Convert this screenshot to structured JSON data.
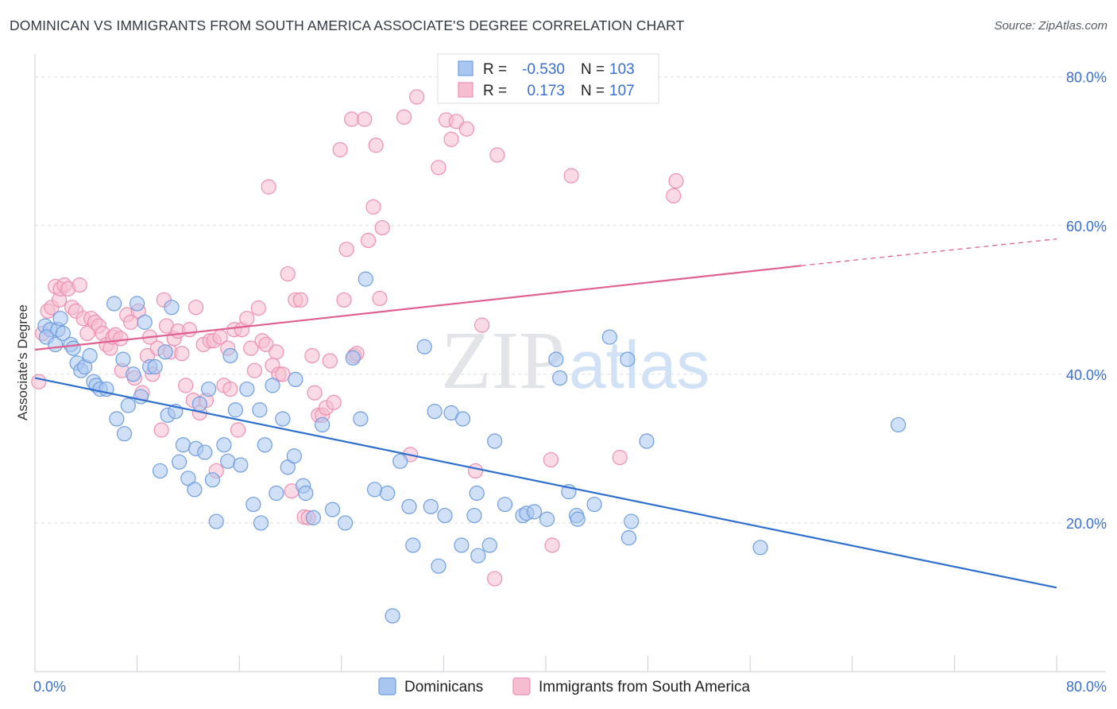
{
  "title": "DOMINICAN VS IMMIGRANTS FROM SOUTH AMERICA ASSOCIATE'S DEGREE CORRELATION CHART",
  "source": "Source: ZipAtlas.com",
  "watermark": {
    "zip": "ZIP",
    "atlas": "atlas"
  },
  "colors": {
    "blue_fill": "#a9c6f0",
    "blue_stroke": "#6f9ee0",
    "blue_line": "#2f6fd0",
    "pink_fill": "#f6bdd0",
    "pink_stroke": "#ee8fb0",
    "pink_line": "#e06090",
    "grid": "#d8dce2",
    "axis_text": "#3a6fd0"
  },
  "legend": {
    "rows": [
      {
        "r_label": "R =",
        "r_value": "-0.530",
        "n_label": "N =",
        "n_value": "103"
      },
      {
        "r_label": "R =",
        "r_value": "0.173",
        "n_label": "N =",
        "n_value": "107"
      }
    ]
  },
  "chart_data": {
    "type": "scatter",
    "title": "DOMINICAN VS IMMIGRANTS FROM SOUTH AMERICA ASSOCIATE'S DEGREE CORRELATION CHART",
    "xlabel": "",
    "ylabel": "Associate's Degree",
    "xlim": [
      0,
      80
    ],
    "ylim": [
      0,
      82
    ],
    "x_tick_labels": [
      "0.0%",
      "80.0%"
    ],
    "y_ticks": [
      20,
      40,
      60,
      80
    ],
    "y_tick_labels": [
      "20.0%",
      "40.0%",
      "60.0%",
      "80.0%"
    ],
    "grid": true,
    "legend_position": "top-center",
    "series": [
      {
        "name": "Dominicans",
        "color": "#a9c6f0",
        "trend": {
          "x": [
            0,
            80
          ],
          "y": [
            39.5,
            11.3
          ],
          "style": "solid"
        },
        "points": [
          [
            0.8,
            46.5
          ],
          [
            1.2,
            46.0
          ],
          [
            0.9,
            45.0
          ],
          [
            1.6,
            44.0
          ],
          [
            1.8,
            46.0
          ],
          [
            2.0,
            47.5
          ],
          [
            2.2,
            45.5
          ],
          [
            2.8,
            44.0
          ],
          [
            3.0,
            43.5
          ],
          [
            3.3,
            41.5
          ],
          [
            3.6,
            40.5
          ],
          [
            3.9,
            41.0
          ],
          [
            4.3,
            42.5
          ],
          [
            4.6,
            39.0
          ],
          [
            4.8,
            38.5
          ],
          [
            5.1,
            38.0
          ],
          [
            5.6,
            38.0
          ],
          [
            6.2,
            49.5
          ],
          [
            6.4,
            34.0
          ],
          [
            6.9,
            42.0
          ],
          [
            7.0,
            32.0
          ],
          [
            7.3,
            35.8
          ],
          [
            7.7,
            40.0
          ],
          [
            8.0,
            49.5
          ],
          [
            8.3,
            37.0
          ],
          [
            8.6,
            47.0
          ],
          [
            9.0,
            41.0
          ],
          [
            9.4,
            41.0
          ],
          [
            9.8,
            27.0
          ],
          [
            10.2,
            43.0
          ],
          [
            10.4,
            34.5
          ],
          [
            10.7,
            49.0
          ],
          [
            11.0,
            35.0
          ],
          [
            11.3,
            28.2
          ],
          [
            11.6,
            30.5
          ],
          [
            12.0,
            26.0
          ],
          [
            12.5,
            24.5
          ],
          [
            12.6,
            30.0
          ],
          [
            12.9,
            36.0
          ],
          [
            13.3,
            29.5
          ],
          [
            13.6,
            38.0
          ],
          [
            13.9,
            25.8
          ],
          [
            14.2,
            20.2
          ],
          [
            14.8,
            30.5
          ],
          [
            15.1,
            28.3
          ],
          [
            15.3,
            42.5
          ],
          [
            15.7,
            35.2
          ],
          [
            16.1,
            27.8
          ],
          [
            16.6,
            38.0
          ],
          [
            17.1,
            22.5
          ],
          [
            17.6,
            35.2
          ],
          [
            17.7,
            20.0
          ],
          [
            18.0,
            30.5
          ],
          [
            18.6,
            38.5
          ],
          [
            18.9,
            24.0
          ],
          [
            19.4,
            34.0
          ],
          [
            19.8,
            27.5
          ],
          [
            20.3,
            29.0
          ],
          [
            20.4,
            39.3
          ],
          [
            21.0,
            25.0
          ],
          [
            21.2,
            24.0
          ],
          [
            21.8,
            20.7
          ],
          [
            22.5,
            33.2
          ],
          [
            23.3,
            21.8
          ],
          [
            24.3,
            20.0
          ],
          [
            24.9,
            42.2
          ],
          [
            25.5,
            34.0
          ],
          [
            25.9,
            52.8
          ],
          [
            26.6,
            24.5
          ],
          [
            27.6,
            24.0
          ],
          [
            28.0,
            7.5
          ],
          [
            28.6,
            28.3
          ],
          [
            29.3,
            22.2
          ],
          [
            29.6,
            17.0
          ],
          [
            30.5,
            43.7
          ],
          [
            31.0,
            22.2
          ],
          [
            31.3,
            35.0
          ],
          [
            31.6,
            14.2
          ],
          [
            32.1,
            21.0
          ],
          [
            32.6,
            34.8
          ],
          [
            33.4,
            17.0
          ],
          [
            33.5,
            34.0
          ],
          [
            34.4,
            21.0
          ],
          [
            34.6,
            24.0
          ],
          [
            34.7,
            15.6
          ],
          [
            35.6,
            17.0
          ],
          [
            36.0,
            31.0
          ],
          [
            36.8,
            22.5
          ],
          [
            38.2,
            21.0
          ],
          [
            38.5,
            21.3
          ],
          [
            39.1,
            21.5
          ],
          [
            40.1,
            20.5
          ],
          [
            40.8,
            42.0
          ],
          [
            41.1,
            39.5
          ],
          [
            41.8,
            24.2
          ],
          [
            42.4,
            21.0
          ],
          [
            42.5,
            20.5
          ],
          [
            43.8,
            22.5
          ],
          [
            45.0,
            45.0
          ],
          [
            46.4,
            42.0
          ],
          [
            46.5,
            18.0
          ],
          [
            46.7,
            20.2
          ],
          [
            47.9,
            31.0
          ],
          [
            56.8,
            16.7
          ],
          [
            67.6,
            33.2
          ]
        ]
      },
      {
        "name": "Immigrants from South America",
        "color": "#f6bdd0",
        "trend": {
          "x": [
            0,
            60,
            80
          ],
          "y": [
            43.3,
            54.6,
            58.2
          ],
          "style": "solid-then-dashed",
          "dash_from_x": 60
        },
        "points": [
          [
            0.3,
            39.0
          ],
          [
            0.6,
            45.5
          ],
          [
            1.0,
            48.5
          ],
          [
            1.3,
            49.0
          ],
          [
            1.6,
            51.8
          ],
          [
            1.9,
            50.0
          ],
          [
            2.0,
            51.5
          ],
          [
            2.3,
            52.0
          ],
          [
            2.6,
            51.5
          ],
          [
            2.9,
            49.0
          ],
          [
            3.2,
            48.5
          ],
          [
            3.5,
            52.0
          ],
          [
            3.8,
            47.5
          ],
          [
            4.1,
            45.5
          ],
          [
            4.4,
            47.5
          ],
          [
            4.7,
            47.0
          ],
          [
            5.0,
            46.5
          ],
          [
            5.3,
            45.5
          ],
          [
            5.6,
            44.0
          ],
          [
            5.9,
            43.5
          ],
          [
            6.1,
            45.0
          ],
          [
            6.3,
            45.3
          ],
          [
            6.7,
            44.8
          ],
          [
            6.8,
            40.5
          ],
          [
            7.2,
            48.0
          ],
          [
            7.5,
            47.0
          ],
          [
            7.8,
            39.5
          ],
          [
            8.1,
            48.5
          ],
          [
            8.4,
            37.5
          ],
          [
            8.8,
            42.5
          ],
          [
            9.0,
            45.0
          ],
          [
            9.2,
            40.0
          ],
          [
            9.6,
            43.5
          ],
          [
            9.9,
            32.5
          ],
          [
            10.1,
            50.0
          ],
          [
            10.3,
            46.5
          ],
          [
            10.6,
            43.0
          ],
          [
            10.9,
            44.8
          ],
          [
            11.2,
            45.8
          ],
          [
            11.5,
            42.8
          ],
          [
            11.8,
            38.5
          ],
          [
            12.1,
            46.0
          ],
          [
            12.4,
            36.5
          ],
          [
            12.6,
            49.0
          ],
          [
            12.9,
            34.8
          ],
          [
            13.2,
            44.0
          ],
          [
            13.4,
            36.5
          ],
          [
            13.7,
            44.5
          ],
          [
            14.0,
            44.5
          ],
          [
            14.2,
            27.0
          ],
          [
            14.5,
            45.0
          ],
          [
            14.8,
            38.5
          ],
          [
            15.1,
            43.5
          ],
          [
            15.3,
            38.0
          ],
          [
            15.6,
            46.0
          ],
          [
            15.9,
            32.5
          ],
          [
            16.2,
            46.0
          ],
          [
            16.6,
            47.5
          ],
          [
            16.9,
            43.5
          ],
          [
            17.2,
            40.5
          ],
          [
            17.5,
            48.9
          ],
          [
            17.8,
            44.5
          ],
          [
            18.1,
            44.0
          ],
          [
            18.3,
            65.2
          ],
          [
            18.6,
            41.2
          ],
          [
            18.9,
            43.0
          ],
          [
            19.1,
            40.0
          ],
          [
            19.4,
            40.0
          ],
          [
            19.8,
            53.5
          ],
          [
            20.1,
            24.3
          ],
          [
            20.4,
            50.0
          ],
          [
            20.8,
            50.0
          ],
          [
            21.1,
            20.8
          ],
          [
            21.4,
            20.7
          ],
          [
            21.7,
            42.5
          ],
          [
            21.9,
            37.5
          ],
          [
            22.2,
            34.5
          ],
          [
            22.5,
            34.5
          ],
          [
            22.8,
            35.5
          ],
          [
            23.1,
            41.8
          ],
          [
            23.4,
            36.2
          ],
          [
            23.9,
            70.2
          ],
          [
            24.2,
            50.0
          ],
          [
            24.4,
            56.8
          ],
          [
            24.8,
            74.3
          ],
          [
            25.0,
            42.5
          ],
          [
            25.2,
            42.8
          ],
          [
            25.8,
            74.3
          ],
          [
            26.1,
            58.0
          ],
          [
            26.5,
            62.5
          ],
          [
            26.7,
            70.8
          ],
          [
            27.0,
            50.2
          ],
          [
            27.2,
            59.7
          ],
          [
            28.9,
            74.6
          ],
          [
            29.4,
            29.2
          ],
          [
            29.9,
            77.3
          ],
          [
            31.6,
            67.8
          ],
          [
            32.2,
            74.2
          ],
          [
            32.6,
            71.6
          ],
          [
            33.0,
            74.0
          ],
          [
            33.8,
            73.0
          ],
          [
            34.5,
            27.0
          ],
          [
            35.0,
            46.6
          ],
          [
            36.0,
            12.5
          ],
          [
            36.2,
            69.5
          ],
          [
            40.4,
            28.5
          ],
          [
            40.5,
            17.0
          ],
          [
            42.0,
            66.7
          ],
          [
            45.8,
            28.8
          ],
          [
            50.0,
            64.0
          ],
          [
            50.2,
            66.0
          ]
        ]
      }
    ]
  },
  "bottom_legend": [
    {
      "label": "Dominicans"
    },
    {
      "label": "Immigrants from South America"
    }
  ]
}
